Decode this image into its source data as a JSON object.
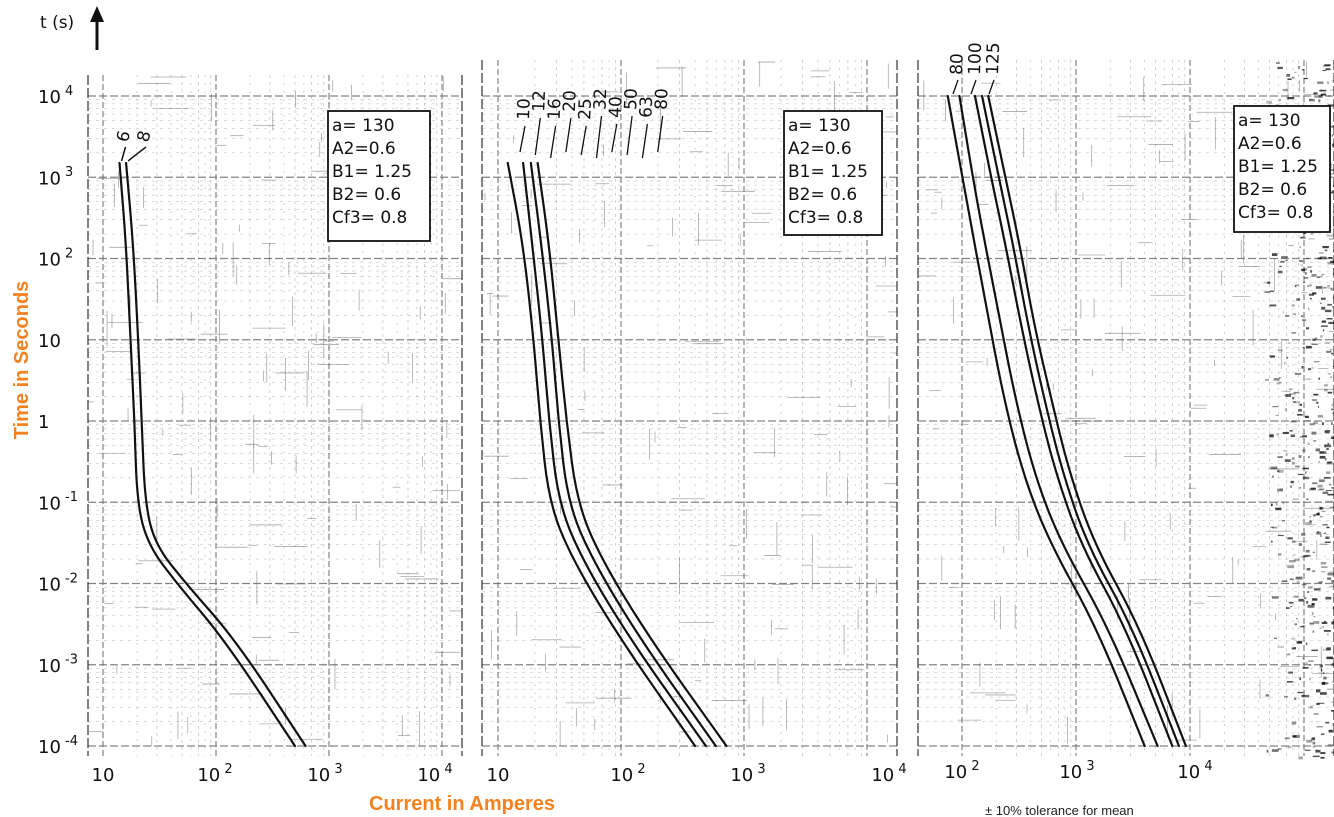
{
  "y_axis_header": "t (s)",
  "y_axis_label": "Time in Seconds",
  "x_axis_label": "Current in Amperes",
  "footnote": "± 10% tolerance for mean",
  "colors": {
    "curve": "#111111",
    "grid": "#777777",
    "label_accent": "#f58220"
  },
  "y_tick_labels": [
    {
      "value": 10000,
      "base": "10",
      "exp": "4"
    },
    {
      "value": 1000,
      "base": "10",
      "exp": "3"
    },
    {
      "value": 100,
      "base": "10",
      "exp": "2"
    },
    {
      "value": 10,
      "base": "10",
      "exp": ""
    },
    {
      "value": 1,
      "base": "1",
      "exp": ""
    },
    {
      "value": 0.1,
      "base": "10",
      "exp": "-1"
    },
    {
      "value": 0.01,
      "base": "10",
      "exp": "-2"
    },
    {
      "value": 0.001,
      "base": "10",
      "exp": "-3"
    },
    {
      "value": 0.0001,
      "base": "10",
      "exp": "-4"
    }
  ],
  "chart_data": [
    {
      "type": "line",
      "panel": "left",
      "x_scale": "log",
      "y_scale": "log",
      "xlim": [
        10,
        20000
      ],
      "ylim": [
        0.0001,
        10000
      ],
      "x_tick_labels": [
        {
          "value": 10,
          "base": "10",
          "exp": ""
        },
        {
          "value": 100,
          "base": "10",
          "exp": "2"
        },
        {
          "value": 1000,
          "base": "10",
          "exp": "3"
        },
        {
          "value": 10000,
          "base": "10",
          "exp": "4"
        }
      ],
      "parameters": [
        "a= 130",
        "A2=0.6",
        "B1= 1.25",
        "B2= 0.6",
        "Cf3= 0.8"
      ],
      "series": [
        {
          "name": "6",
          "points": [
            [
              14,
              1500
            ],
            [
              16,
              150
            ],
            [
              17.5,
              10
            ],
            [
              19,
              1
            ],
            [
              20,
              0.1
            ],
            [
              25,
              0.03
            ],
            [
              45,
              0.01
            ],
            [
              120,
              0.002
            ],
            [
              500,
              0.0001
            ]
          ]
        },
        {
          "name": "8",
          "points": [
            [
              16,
              1500
            ],
            [
              18.5,
              150
            ],
            [
              20.5,
              10
            ],
            [
              22,
              1
            ],
            [
              23.5,
              0.1
            ],
            [
              29,
              0.03
            ],
            [
              54,
              0.01
            ],
            [
              150,
              0.002
            ],
            [
              620,
              0.0001
            ]
          ]
        }
      ]
    },
    {
      "type": "line",
      "panel": "middle",
      "x_scale": "log",
      "y_scale": "log",
      "xlim": [
        10,
        10000
      ],
      "ylim": [
        0.0001,
        10000
      ],
      "x_tick_labels": [
        {
          "value": 10,
          "base": "10",
          "exp": ""
        },
        {
          "value": 100,
          "base": "10",
          "exp": "2"
        },
        {
          "value": 1000,
          "base": "10",
          "exp": "3"
        },
        {
          "value": 10000,
          "base": "10",
          "exp": "4"
        }
      ],
      "rating_labels": [
        "10",
        "12",
        "16",
        "20",
        "25",
        "32",
        "40",
        "50",
        "63",
        "80"
      ],
      "parameters": [
        "a= 130",
        "A2=0.6",
        "B1= 1.25",
        "B2= 0.6",
        "Cf3= 0.8"
      ],
      "series": [
        {
          "name": "10",
          "points": [
            [
              12,
              1500
            ],
            [
              16,
              150
            ],
            [
              19.5,
              10
            ],
            [
              22,
              1
            ],
            [
              26,
              0.1
            ],
            [
              40,
              0.02
            ],
            [
              100,
              0.002
            ],
            [
              400,
              0.0001
            ]
          ]
        },
        {
          "name": "12",
          "points": [
            [
              16,
              1500
            ],
            [
              19,
              150
            ],
            [
              23,
              10
            ],
            [
              26,
              1
            ],
            [
              31,
              0.1
            ],
            [
              48,
              0.02
            ],
            [
              120,
              0.002
            ],
            [
              490,
              0.0001
            ]
          ]
        },
        {
          "name": "16",
          "points": [
            [
              18.5,
              1500
            ],
            [
              22.5,
              150
            ],
            [
              27.5,
              10
            ],
            [
              31,
              1
            ],
            [
              37,
              0.1
            ],
            [
              58,
              0.02
            ],
            [
              145,
              0.002
            ],
            [
              590,
              0.0001
            ]
          ]
        },
        {
          "name": "20",
          "points": [
            [
              21,
              1500
            ],
            [
              26,
              150
            ],
            [
              31,
              10
            ],
            [
              36,
              1
            ],
            [
              44,
              0.1
            ],
            [
              69,
              0.02
            ],
            [
              175,
              0.002
            ],
            [
              720,
              0.0001
            ]
          ]
        }
      ]
    },
    {
      "type": "line",
      "panel": "right",
      "x_scale": "log",
      "y_scale": "log",
      "xlim": [
        100,
        50000
      ],
      "ylim": [
        0.0001,
        10000
      ],
      "x_tick_labels": [
        {
          "value": 100,
          "base": "10",
          "exp": "2"
        },
        {
          "value": 1000,
          "base": "10",
          "exp": "3"
        },
        {
          "value": 10000,
          "base": "10",
          "exp": "4"
        }
      ],
      "rating_labels": [
        "80",
        "100",
        "125"
      ],
      "parameters": [
        "a= 130",
        "A2=0.6",
        "B1= 1.25",
        "B2= 0.6",
        "Cf3= 0.8"
      ],
      "series": [
        {
          "name": "80",
          "points": [
            [
              75,
              10000
            ],
            [
              110,
              500
            ],
            [
              160,
              30
            ],
            [
              230,
              2
            ],
            [
              350,
              0.2
            ],
            [
              600,
              0.03
            ],
            [
              1500,
              0.003
            ],
            [
              4000,
              0.0001
            ]
          ]
        },
        {
          "name": "100",
          "points": [
            [
              95,
              10000
            ],
            [
              135,
              500
            ],
            [
              200,
              30
            ],
            [
              290,
              2
            ],
            [
              440,
              0.2
            ],
            [
              750,
              0.03
            ],
            [
              1900,
              0.003
            ],
            [
              5200,
              0.0001
            ]
          ]
        },
        {
          "name": "125",
          "points": [
            [
              130,
              10000
            ],
            [
              180,
              1000
            ],
            [
              240,
              150
            ],
            [
              330,
              15
            ],
            [
              450,
              2
            ],
            [
              650,
              0.25
            ],
            [
              1100,
              0.03
            ],
            [
              2700,
              0.003
            ],
            [
              7000,
              0.0001
            ]
          ]
        },
        {
          "name": "",
          "points": [
            [
              150,
              10000
            ],
            [
              210,
              1000
            ],
            [
              280,
              150
            ],
            [
              380,
              15
            ],
            [
              520,
              2
            ],
            [
              750,
              0.25
            ],
            [
              1250,
              0.03
            ],
            [
              3100,
              0.003
            ],
            [
              8000,
              0.0001
            ]
          ]
        },
        {
          "name": "",
          "points": [
            [
              170,
              10000
            ],
            [
              240,
              1000
            ],
            [
              320,
              150
            ],
            [
              430,
              15
            ],
            [
              600,
              2
            ],
            [
              860,
              0.25
            ],
            [
              1450,
              0.03
            ],
            [
              3600,
              0.003
            ],
            [
              9200,
              0.0001
            ]
          ]
        }
      ]
    }
  ]
}
